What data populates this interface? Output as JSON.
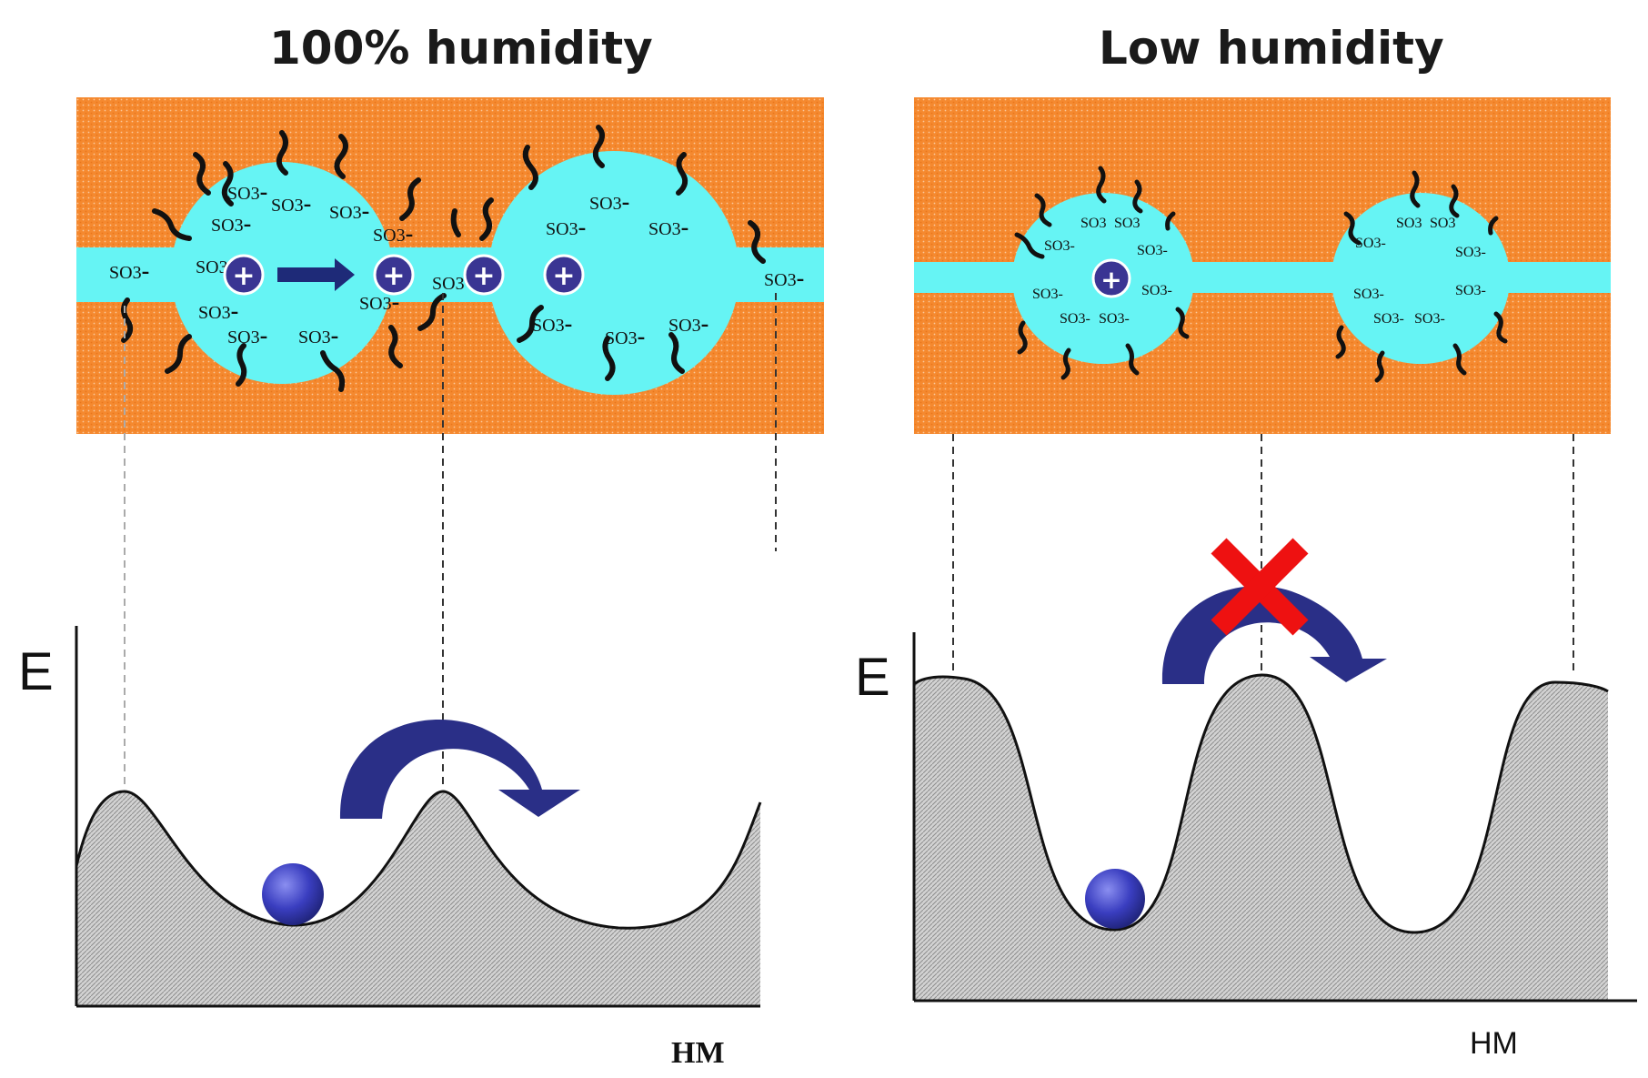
{
  "panels": [
    {
      "title": "100% humidity",
      "group_label": "SO3",
      "charge_label": "-",
      "proton_symbol": "+",
      "y_axis_label": "E",
      "x_axis_label": "HM",
      "hop": "allowed"
    },
    {
      "title": "Low humidity",
      "group_label": "SO3",
      "charge_label": "-",
      "proton_symbol": "+",
      "y_axis_label": "E",
      "x_axis_label": "HM",
      "hop": "blocked"
    }
  ],
  "colors": {
    "membrane": "#f5892f",
    "water": "#66f4f4",
    "proton": "#3a3593",
    "arrow": "#2a2f87",
    "block_mark": "#ee1111",
    "energy_fill": "#c8c8c8"
  }
}
